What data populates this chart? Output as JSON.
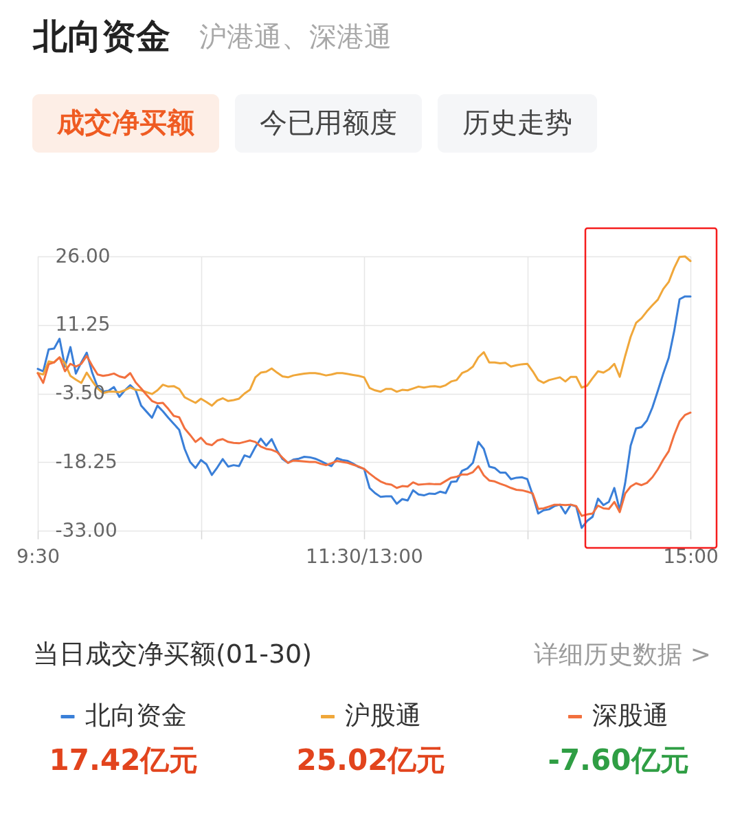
{
  "chart_data": {
    "type": "line",
    "title": "北向资金",
    "subtitle": "沪港通、深港通",
    "annotations": [
      "成交净买额",
      "今已用额度",
      "历史走势",
      "当日成交净买额(01-30)",
      "详细历史数据 >",
      "17.42亿元",
      "25.02亿元",
      "-7.60亿元"
    ],
    "categories": [
      "9:30",
      null,
      null,
      null,
      null,
      null,
      null,
      null,
      null,
      null,
      null,
      null,
      null,
      null,
      null,
      null,
      null,
      null,
      null,
      null,
      null,
      null,
      null,
      null,
      null,
      null,
      null,
      null,
      null,
      null,
      null,
      null,
      null,
      null,
      null,
      null,
      null,
      null,
      null,
      null,
      null,
      null,
      null,
      null,
      null,
      null,
      null,
      null,
      null,
      null,
      null,
      null,
      null,
      null,
      null,
      null,
      null,
      null,
      null,
      null,
      "11:30/13:00",
      null,
      null,
      null,
      null,
      null,
      null,
      null,
      null,
      null,
      null,
      null,
      null,
      null,
      null,
      null,
      null,
      null,
      null,
      null,
      null,
      null,
      null,
      null,
      null,
      null,
      null,
      null,
      null,
      null,
      null,
      null,
      null,
      null,
      null,
      null,
      null,
      null,
      null,
      null,
      null,
      null,
      null,
      null,
      null,
      null,
      null,
      null,
      null,
      null,
      null,
      null,
      null,
      null,
      null,
      null,
      null,
      null,
      null,
      null,
      "15:00"
    ],
    "ylim": [
      -33,
      26
    ],
    "yticks": [
      {
        "value": 26,
        "label": "26.00"
      },
      11.25,
      {
        "value": -3.5,
        "label": "-3.50"
      },
      -18.25,
      {
        "value": -33,
        "label": "-33.00"
      }
    ],
    "grid": true,
    "legend": "bottom",
    "series": [
      {
        "name": "北向资金",
        "color": "#3a7fd8",
        "values": [
          1.8,
          1.3,
          6.0,
          6.2,
          8.3,
          2.3,
          6.5,
          0.8,
          3.2,
          5.3,
          1.0,
          -2.1,
          -3.1,
          -2.9,
          -2.1,
          -4.2,
          -2.8,
          -1.7,
          -2.8,
          -6.1,
          -7.4,
          -8.7,
          -6.1,
          -7.3,
          -8.7,
          -10.0,
          -11.3,
          -15.4,
          -18.2,
          -19.5,
          -17.8,
          -18.7,
          -21.0,
          -19.4,
          -17.6,
          -19.2,
          -18.9,
          -19.1,
          -16.8,
          -17.2,
          -15.0,
          -13.2,
          -14.7,
          -13.3,
          -15.8,
          -17.6,
          -18.4,
          -17.7,
          -17.5,
          -17.1,
          -17.2,
          -17.5,
          -18.0,
          -18.6,
          -19.1,
          -17.4,
          -17.8,
          -18.0,
          -18.6,
          -19.3,
          -19.7,
          -23.8,
          -24.9,
          -25.7,
          -25.6,
          -25.6,
          -27.2,
          -26.2,
          -26.5,
          -24.3,
          -25.2,
          -25.4,
          -25.0,
          -25.1,
          -24.6,
          -24.9,
          -22.5,
          -22.4,
          -20.1,
          -19.6,
          -18.4,
          -13.9,
          -15.4,
          -19.2,
          -19.5,
          -20.5,
          -20.5,
          -21.9,
          -21.6,
          -21.5,
          -21.9,
          -25.3,
          -29.3,
          -28.6,
          -28.4,
          -27.7,
          -27.4,
          -29.3,
          -27.4,
          -27.8,
          -32.4,
          -30.9,
          -30.0,
          -26.1,
          -27.5,
          -26.8,
          -23.8,
          -28.6,
          -22.7,
          -14.7,
          -11.0,
          -10.7,
          -9.3,
          -6.5,
          -2.9,
          0.8,
          4.2,
          9.9,
          16.8,
          17.4,
          17.4
        ]
      },
      {
        "name": "沪股通",
        "color": "#f0a73a",
        "values": [
          0.9,
          0.6,
          3.4,
          3.2,
          4.3,
          3.0,
          0.3,
          -0.5,
          -1.2,
          1.0,
          -0.8,
          -2.4,
          -3.4,
          -3.1,
          -3.1,
          -3.2,
          -2.8,
          -2.2,
          -2.7,
          -2.8,
          -3.2,
          -3.6,
          -2.8,
          -1.6,
          -2.0,
          -1.9,
          -2.5,
          -4.3,
          -4.9,
          -5.5,
          -4.6,
          -5.3,
          -6.1,
          -5.0,
          -4.5,
          -5.1,
          -4.9,
          -4.6,
          -3.5,
          -2.7,
          0.0,
          1.0,
          1.2,
          1.9,
          1.0,
          0.2,
          0.0,
          0.4,
          0.6,
          0.8,
          0.9,
          0.9,
          0.7,
          0.4,
          0.6,
          0.9,
          0.9,
          0.7,
          0.5,
          0.3,
          0.0,
          -2.3,
          -2.8,
          -3.1,
          -2.5,
          -2.5,
          -3.1,
          -2.7,
          -2.8,
          -2.4,
          -2.0,
          -2.2,
          -2.0,
          -1.9,
          -2.1,
          -1.7,
          -0.9,
          -0.6,
          0.9,
          1.4,
          2.3,
          4.3,
          5.4,
          3.2,
          3.2,
          3.0,
          3.1,
          2.3,
          2.6,
          2.8,
          2.9,
          1.3,
          -0.6,
          -1.2,
          -0.6,
          -0.3,
          0.0,
          -0.9,
          0.1,
          0.1,
          -2.2,
          -1.8,
          -0.2,
          1.3,
          1.0,
          1.7,
          2.9,
          0.1,
          4.6,
          8.7,
          11.7,
          12.7,
          14.2,
          15.5,
          16.7,
          19.0,
          20.5,
          23.5,
          25.9,
          26.0,
          25.0
        ]
      },
      {
        "name": "深股通",
        "color": "#f2703e",
        "values": [
          0.9,
          -1.2,
          2.8,
          3.2,
          4.3,
          1.3,
          2.9,
          2.3,
          2.9,
          4.6,
          2.5,
          0.6,
          0.3,
          0.5,
          0.8,
          0.2,
          -0.1,
          0.9,
          -1.1,
          -2.4,
          -3.8,
          -5.1,
          -5.6,
          -5.5,
          -6.8,
          -8.3,
          -8.6,
          -11.0,
          -12.4,
          -13.9,
          -13.0,
          -14.3,
          -14.6,
          -13.6,
          -13.3,
          -13.9,
          -14.1,
          -14.2,
          -13.9,
          -13.6,
          -13.9,
          -14.9,
          -15.4,
          -15.6,
          -16.1,
          -17.3,
          -18.4,
          -17.9,
          -18.0,
          -18.1,
          -18.2,
          -18.2,
          -18.6,
          -18.9,
          -18.5,
          -18.0,
          -18.2,
          -18.4,
          -18.8,
          -19.2,
          -19.7,
          -20.7,
          -21.6,
          -22.4,
          -22.9,
          -23.1,
          -23.8,
          -23.4,
          -23.5,
          -22.6,
          -23.1,
          -23.0,
          -22.9,
          -23.0,
          -23.0,
          -22.3,
          -21.6,
          -21.4,
          -20.9,
          -20.9,
          -20.4,
          -19.1,
          -21.1,
          -22.2,
          -22.4,
          -22.9,
          -23.3,
          -23.8,
          -24.2,
          -24.3,
          -24.6,
          -25.0,
          -28.3,
          -28.2,
          -27.8,
          -27.4,
          -27.4,
          -27.5,
          -27.4,
          -27.7,
          -29.8,
          -29.5,
          -29.3,
          -27.6,
          -28.2,
          -28.3,
          -26.8,
          -29.0,
          -25.0,
          -23.5,
          -22.8,
          -23.2,
          -22.7,
          -21.5,
          -19.8,
          -17.7,
          -15.9,
          -12.4,
          -9.5,
          -8.1,
          -7.6
        ]
      }
    ]
  }
}
